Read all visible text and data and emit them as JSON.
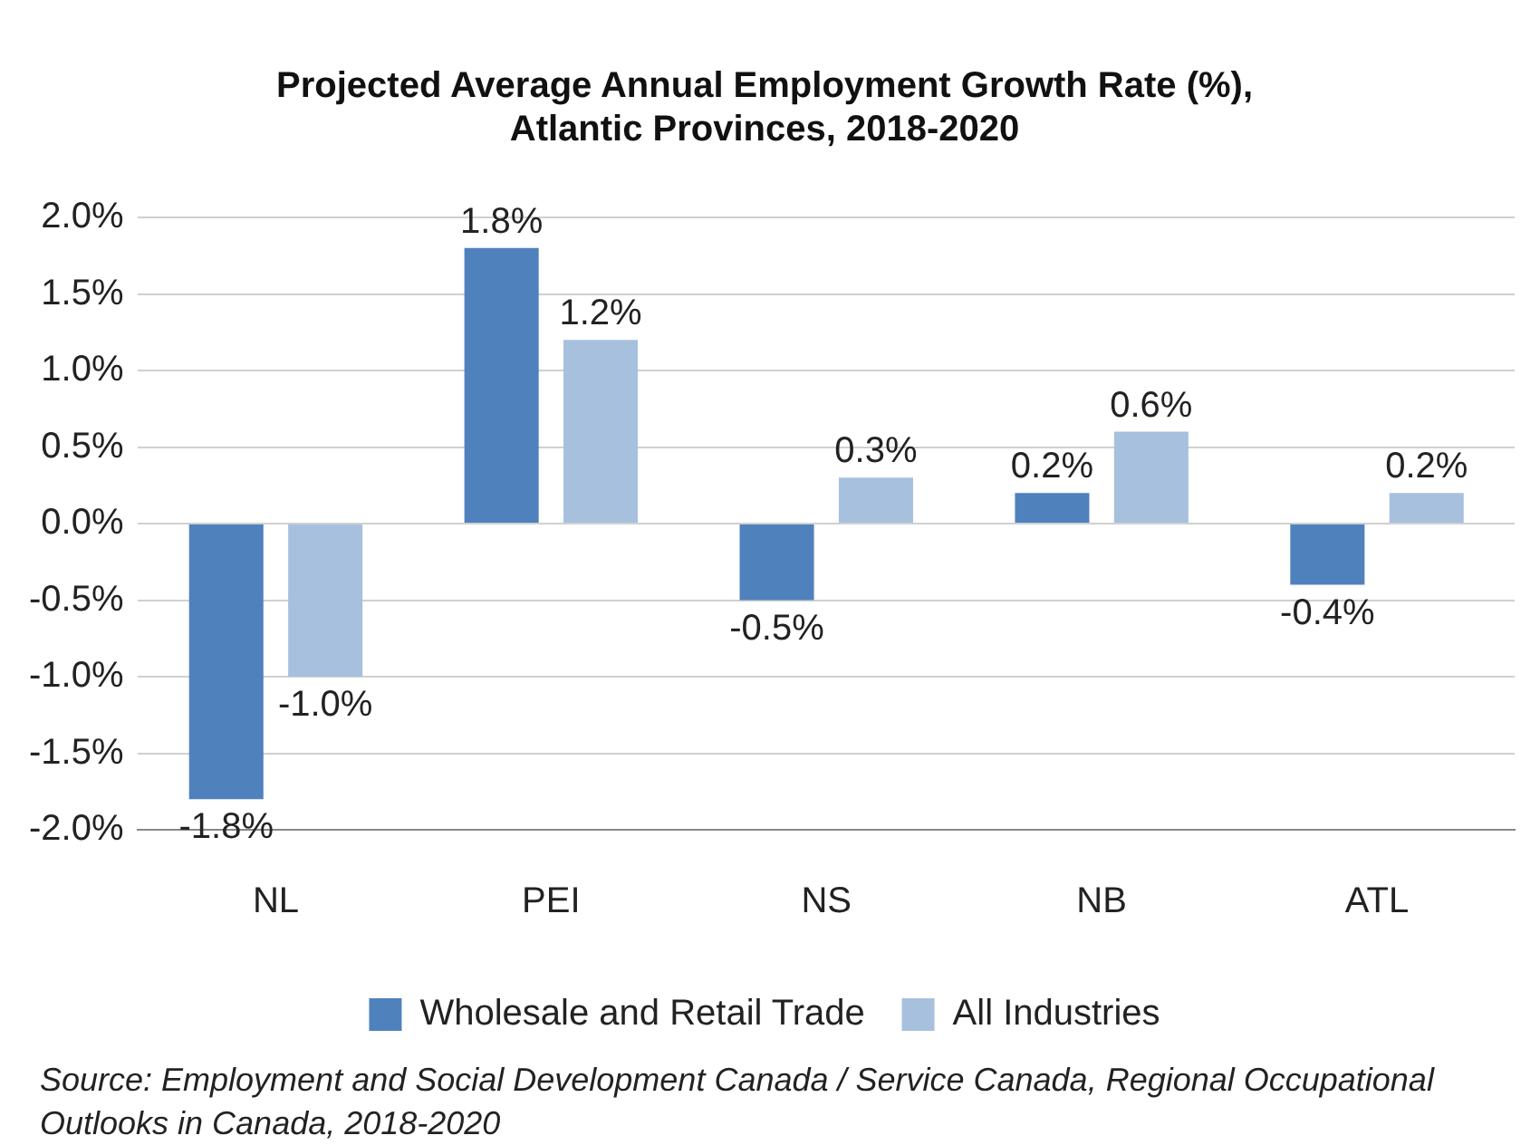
{
  "chart_data": {
    "type": "bar",
    "title": [
      "Projected Average Annual Employment Growth Rate (%),",
      "Atlantic Provinces, 2018-2020"
    ],
    "categories": [
      "NL",
      "PEI",
      "NS",
      "NB",
      "ATL"
    ],
    "series": [
      {
        "name": "Wholesale and Retail Trade",
        "color": "#4f81bd",
        "values": [
          -1.8,
          1.8,
          -0.5,
          0.2,
          -0.4
        ],
        "value_labels": [
          "-1.8%",
          "1.8%",
          "-0.5%",
          "0.2%",
          "-0.4%"
        ]
      },
      {
        "name": "All Industries",
        "color": "#a7c0de",
        "values": [
          -1.0,
          1.2,
          0.3,
          0.6,
          0.2
        ],
        "value_labels": [
          "-1.0%",
          "1.2%",
          "0.3%",
          "0.6%",
          "0.2%"
        ]
      }
    ],
    "ylim": [
      -2,
      2
    ],
    "yticks": [
      {
        "value": -2,
        "label": "-2.0%"
      },
      {
        "value": -1.5,
        "label": "-1.5%"
      },
      {
        "value": -1,
        "label": "-1.0%"
      },
      {
        "value": -0.5,
        "label": "-0.5%"
      },
      {
        "value": 0,
        "label": "0.0%"
      },
      {
        "value": 0.5,
        "label": "0.5%"
      },
      {
        "value": 1,
        "label": "1.0%"
      },
      {
        "value": 1.5,
        "label": "1.5%"
      },
      {
        "value": 2,
        "label": "2.0%"
      }
    ],
    "grid": "y",
    "legend": "bottom",
    "annotations": [
      "Source: Employment and Social Development Canada / Service Canada, Regional Occupational Outlooks in Canada, 2018-2020"
    ]
  }
}
